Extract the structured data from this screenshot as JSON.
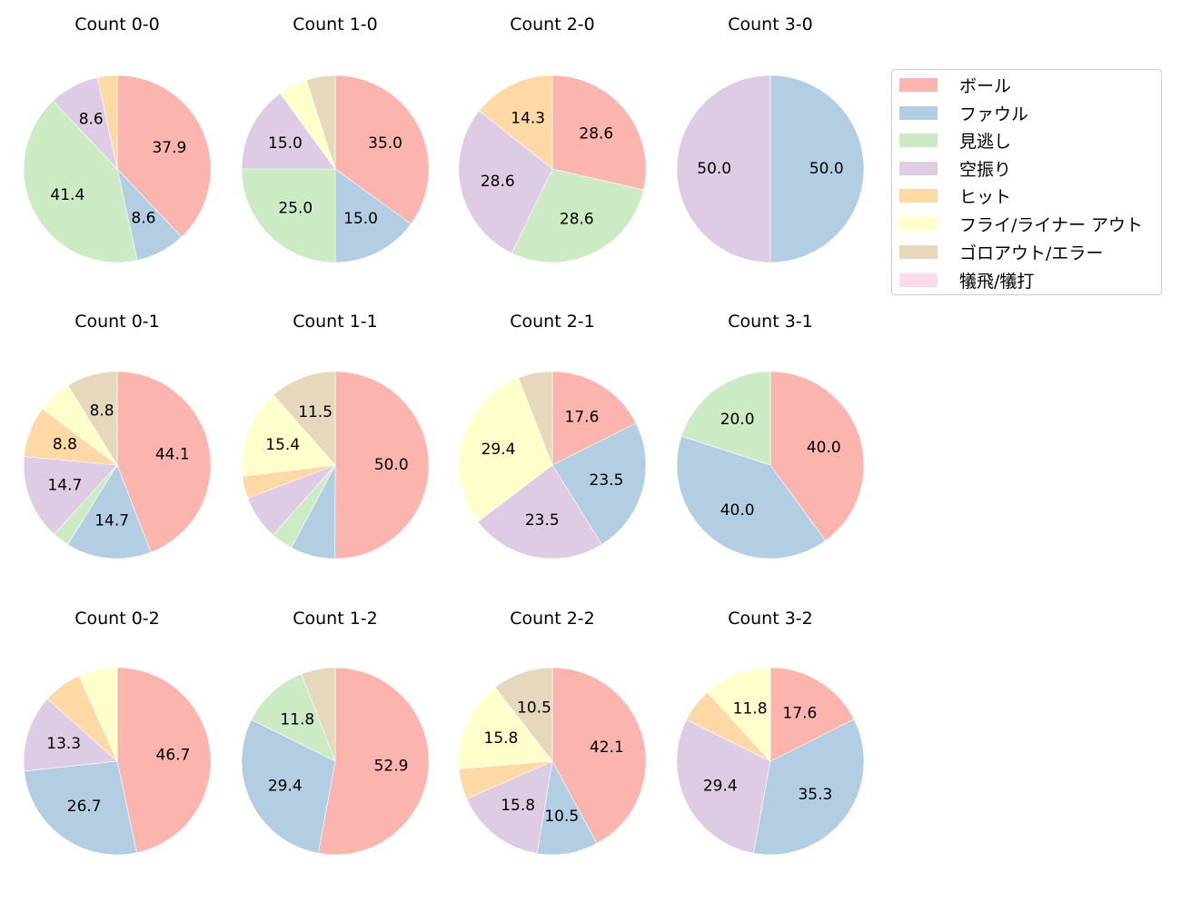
{
  "chart_data": {
    "type": "pie",
    "start_angle_deg": 90,
    "direction": "clockwise",
    "label_format": "%.1f",
    "legend": {
      "position": "upper right, outside",
      "entries": [
        {
          "label": "ボール",
          "color": "#fbb4ae"
        },
        {
          "label": "ファウル",
          "color": "#b3cde3"
        },
        {
          "label": "見逃し",
          "color": "#ccebc5"
        },
        {
          "label": "空振り",
          "color": "#decbe4"
        },
        {
          "label": "ヒット",
          "color": "#fed9a6"
        },
        {
          "label": "フライ/ライナー アウト",
          "color": "#ffffcc"
        },
        {
          "label": "ゴロアウト/エラー",
          "color": "#e5d8bd"
        },
        {
          "label": "犠飛/犠打",
          "color": "#fddaec"
        }
      ]
    },
    "categories": [
      "ボール",
      "ファウル",
      "見逃し",
      "空振り",
      "ヒット",
      "フライ/ライナー アウト",
      "ゴロアウト/エラー",
      "犠飛/犠打"
    ],
    "charts": [
      {
        "title": "Count 0-0",
        "values": [
          37.9,
          8.6,
          41.4,
          8.6,
          3.4,
          0,
          0,
          0
        ]
      },
      {
        "title": "Count 1-0",
        "values": [
          35.0,
          15.0,
          25.0,
          15.0,
          0,
          5.0,
          5.0,
          0
        ]
      },
      {
        "title": "Count 2-0",
        "values": [
          28.6,
          0,
          28.6,
          28.6,
          14.3,
          0,
          0,
          0
        ]
      },
      {
        "title": "Count 3-0",
        "values": [
          0,
          50.0,
          0,
          50.0,
          0,
          0,
          0,
          0
        ]
      },
      {
        "title": "Count 0-1",
        "values": [
          44.1,
          14.7,
          2.9,
          14.7,
          8.8,
          5.9,
          8.8,
          0
        ]
      },
      {
        "title": "Count 1-1",
        "values": [
          50.0,
          7.7,
          3.8,
          7.7,
          3.8,
          15.4,
          11.5,
          0
        ]
      },
      {
        "title": "Count 2-1",
        "values": [
          17.6,
          23.5,
          0,
          23.5,
          0,
          29.4,
          5.9,
          0
        ]
      },
      {
        "title": "Count 3-1",
        "values": [
          40.0,
          40.0,
          20.0,
          0,
          0,
          0,
          0,
          0
        ]
      },
      {
        "title": "Count 0-2",
        "values": [
          46.7,
          26.7,
          0,
          13.3,
          6.7,
          6.7,
          0,
          0
        ]
      },
      {
        "title": "Count 1-2",
        "values": [
          52.9,
          29.4,
          11.8,
          0,
          0,
          0,
          5.9,
          0
        ]
      },
      {
        "title": "Count 2-2",
        "values": [
          42.1,
          10.5,
          0,
          15.8,
          5.3,
          15.8,
          10.5,
          0
        ]
      },
      {
        "title": "Count 3-2",
        "values": [
          17.6,
          35.3,
          0,
          29.4,
          5.9,
          11.8,
          0,
          0
        ]
      }
    ],
    "label_min_pct": 8
  },
  "titles": {
    "c00": "Count 0-0",
    "c10": "Count 1-0",
    "c20": "Count 2-0",
    "c30": "Count 3-0",
    "c01": "Count 0-1",
    "c11": "Count 1-1",
    "c21": "Count 2-1",
    "c31": "Count 3-1",
    "c02": "Count 0-2",
    "c12": "Count 1-2",
    "c22": "Count 2-2",
    "c32": "Count 3-2"
  },
  "legend": {
    "items": [
      "ボール",
      "ファウル",
      "見逃し",
      "空振り",
      "ヒット",
      "フライ/ライナー アウト",
      "ゴロアウト/エラー",
      "犠飛/犠打"
    ]
  }
}
